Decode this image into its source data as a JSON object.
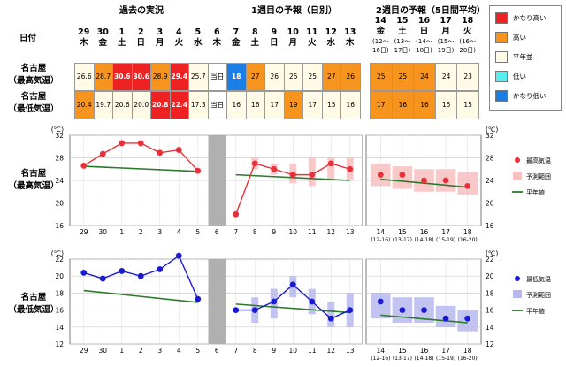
{
  "header": {
    "past_label": "過去の実況",
    "week1_label": "1週目の予報（日別）",
    "week2_label": "2週目の予報（5日間平均）",
    "date_label": "日付"
  },
  "dates": [
    {
      "d": "29",
      "w": "木"
    },
    {
      "d": "30",
      "w": "金"
    },
    {
      "d": "1",
      "w": "土"
    },
    {
      "d": "2",
      "w": "日"
    },
    {
      "d": "3",
      "w": "月"
    },
    {
      "d": "4",
      "w": "火"
    },
    {
      "d": "5",
      "w": "水"
    },
    {
      "d": "6",
      "w": "木"
    },
    {
      "d": "7",
      "w": "金"
    },
    {
      "d": "8",
      "w": "土"
    },
    {
      "d": "9",
      "w": "日"
    },
    {
      "d": "10",
      "w": "月"
    },
    {
      "d": "11",
      "w": "火"
    },
    {
      "d": "12",
      "w": "水"
    },
    {
      "d": "13",
      "w": "木"
    }
  ],
  "week2_dates": [
    {
      "d": "14",
      "w": "金",
      "r": "(12〜",
      "r2": "16日)"
    },
    {
      "d": "15",
      "w": "土",
      "r": "(13〜",
      "r2": "17日)"
    },
    {
      "d": "16",
      "w": "日",
      "r": "(14〜",
      "r2": "18日)"
    },
    {
      "d": "17",
      "w": "月",
      "r": "(15〜",
      "r2": "19日)"
    },
    {
      "d": "18",
      "w": "火",
      "r": "(16〜",
      "r2": "20日)"
    }
  ],
  "rows": [
    {
      "label1": "名古屋",
      "label2": "（最高気温）",
      "daily": [
        "26.6",
        "28.7",
        "30.6",
        "30.6",
        "28.9",
        "29.4",
        "25.7",
        "当日",
        "18",
        "27",
        "26",
        "25",
        "25",
        "27",
        "26"
      ],
      "daily_class": [
        "n",
        "o",
        "r",
        "r",
        "o",
        "r",
        "n",
        "g",
        "b",
        "o",
        "n",
        "n",
        "n",
        "o",
        "o"
      ],
      "week2": [
        "25",
        "25",
        "24",
        "24",
        "23"
      ],
      "week2_class": [
        "o",
        "o",
        "o",
        "n",
        "n"
      ]
    },
    {
      "label1": "名古屋",
      "label2": "（最低気温）",
      "daily": [
        "20.4",
        "19.7",
        "20.6",
        "20.0",
        "20.8",
        "22.4",
        "17.3",
        "当日",
        "16",
        "16",
        "17",
        "19",
        "17",
        "15",
        "16"
      ],
      "daily_class": [
        "o",
        "n",
        "n",
        "n",
        "r",
        "r",
        "n",
        "g",
        "n",
        "n",
        "n",
        "o",
        "n",
        "n",
        "n"
      ],
      "week2": [
        "17",
        "16",
        "16",
        "15",
        "15"
      ],
      "week2_class": [
        "o",
        "o",
        "o",
        "n",
        "n"
      ]
    }
  ],
  "legend": [
    {
      "label": "かなり高い",
      "color": "#ee2222"
    },
    {
      "label": "高い",
      "color": "#f7941d"
    },
    {
      "label": "平年並",
      "color": "#fffbe6"
    },
    {
      "label": "低い",
      "color": "#55eeee"
    },
    {
      "label": "かなり低い",
      "color": "#1a7ee6"
    }
  ],
  "colors": {
    "r": "#ee2222",
    "o": "#f7941d",
    "n": "#fffbe6",
    "b": "#1a7ee6",
    "g": "#ffffff"
  },
  "chart_data": [
    {
      "type": "line",
      "title": "名古屋（最高気温）",
      "unit": "(℃)",
      "ylim": [
        16,
        32
      ],
      "yticks": [
        16,
        20,
        24,
        28,
        32
      ],
      "x_left": [
        "29",
        "30",
        "1",
        "2",
        "3",
        "4",
        "5",
        "6",
        "7",
        "8",
        "9",
        "10",
        "11",
        "12",
        "13"
      ],
      "x_right": [
        "14",
        "15",
        "16",
        "17",
        "18"
      ],
      "x_right_sub": [
        "(12-16)",
        "(13-17)",
        "(14-18)",
        "(15-19)",
        "(16-20)"
      ],
      "series": [
        {
          "name": "最高気温",
          "color": "#e8303a",
          "past": [
            26.6,
            28.7,
            30.6,
            30.6,
            28.9,
            29.4,
            25.7
          ],
          "forecast": [
            18,
            27,
            26,
            25,
            25,
            27,
            26
          ],
          "week2": [
            25,
            25,
            24,
            24,
            23
          ]
        },
        {
          "name": "予測範囲",
          "color": "#f8c0c0",
          "forecast_range": [
            null,
            [
              26,
              28
            ],
            [
              25,
              27
            ],
            [
              23.5,
              27
            ],
            [
              23,
              28
            ],
            [
              24,
              28
            ],
            [
              24,
              28
            ]
          ],
          "week2_range": [
            [
              23,
              27
            ],
            [
              22.5,
              26.5
            ],
            [
              22,
              26
            ],
            [
              22,
              26
            ],
            [
              21.5,
              25.5
            ]
          ]
        },
        {
          "name": "平年値",
          "color": "#2b7a2b",
          "normal_past": [
            26.5,
            25.6
          ],
          "normal_forecast": [
            25.0,
            24.0
          ],
          "normal_week2": [
            24.2,
            22.8
          ]
        }
      ]
    },
    {
      "type": "line",
      "title": "名古屋（最低気温）",
      "unit": "(℃)",
      "ylim": [
        12,
        22
      ],
      "yticks": [
        12,
        14,
        16,
        18,
        20,
        22
      ],
      "x_left": [
        "29",
        "30",
        "1",
        "2",
        "3",
        "4",
        "5",
        "6",
        "7",
        "8",
        "9",
        "10",
        "11",
        "12",
        "13"
      ],
      "x_right": [
        "14",
        "15",
        "16",
        "17",
        "18"
      ],
      "x_right_sub": [
        "(12-16)",
        "(13-17)",
        "(14-18)",
        "(15-19)",
        "(16-20)"
      ],
      "series": [
        {
          "name": "最低気温",
          "color": "#1a1ad0",
          "past": [
            20.4,
            19.7,
            20.6,
            20.0,
            20.8,
            22.4,
            17.3
          ],
          "forecast": [
            16,
            16,
            17,
            19,
            17,
            15,
            16
          ],
          "week2": [
            17,
            16,
            16,
            15,
            15
          ]
        },
        {
          "name": "予測範囲",
          "color": "#b8b8f0",
          "forecast_range": [
            null,
            [
              14.5,
              17.5
            ],
            [
              15,
              18.5
            ],
            [
              17.5,
              20
            ],
            [
              15.5,
              18.5
            ],
            [
              14,
              17
            ],
            [
              14,
              18
            ]
          ],
          "week2_range": [
            [
              15,
              18
            ],
            [
              14.5,
              17.5
            ],
            [
              14.5,
              17.5
            ],
            [
              14,
              16.5
            ],
            [
              13.5,
              16
            ]
          ]
        },
        {
          "name": "平年値",
          "color": "#2b7a2b",
          "normal_past": [
            18.3,
            16.9
          ],
          "normal_forecast": [
            16.7,
            15.7
          ],
          "normal_week2": [
            15.4,
            14.5
          ]
        }
      ]
    }
  ]
}
